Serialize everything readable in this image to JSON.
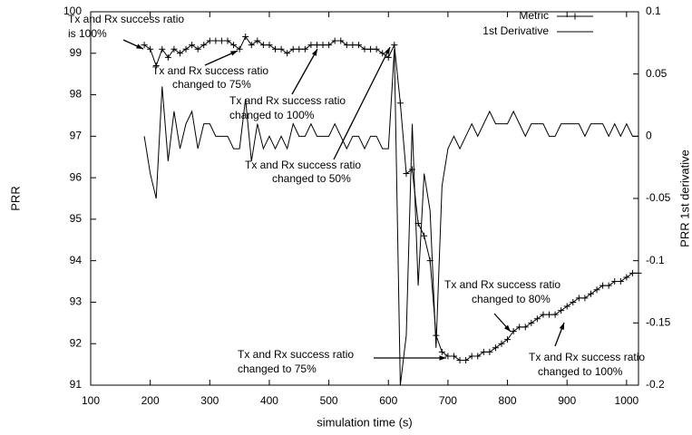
{
  "chart_data": {
    "type": "line",
    "x_label": "simulation time (s)",
    "y_label": "PRR",
    "y2_label": "PRR 1st derivative",
    "x": [
      190,
      200,
      210,
      220,
      230,
      240,
      250,
      260,
      270,
      280,
      290,
      300,
      310,
      320,
      330,
      340,
      350,
      360,
      370,
      380,
      390,
      400,
      410,
      420,
      430,
      440,
      450,
      460,
      470,
      480,
      490,
      500,
      510,
      520,
      530,
      540,
      550,
      560,
      570,
      580,
      590,
      600,
      610,
      620,
      630,
      640,
      650,
      660,
      670,
      680,
      690,
      700,
      710,
      720,
      730,
      740,
      750,
      760,
      770,
      780,
      790,
      800,
      810,
      820,
      830,
      840,
      850,
      860,
      870,
      880,
      890,
      900,
      910,
      920,
      930,
      940,
      950,
      960,
      970,
      980,
      990,
      1000,
      1010,
      1020
    ],
    "series": [
      {
        "name": "Metric",
        "color": "#000000",
        "marker": "plus",
        "values": [
          99.2,
          99.1,
          98.7,
          99.1,
          98.9,
          99.1,
          99.0,
          99.1,
          99.2,
          99.1,
          99.2,
          99.3,
          99.3,
          99.3,
          99.3,
          99.2,
          99.1,
          99.4,
          99.2,
          99.3,
          99.2,
          99.2,
          99.1,
          99.1,
          99.0,
          99.1,
          99.1,
          99.1,
          99.2,
          99.2,
          99.2,
          99.2,
          99.3,
          99.3,
          99.2,
          99.2,
          99.2,
          99.1,
          99.1,
          99.1,
          99.0,
          98.9,
          99.2,
          97.8,
          96.1,
          96.2,
          94.9,
          94.6,
          94.0,
          92.2,
          91.8,
          91.7,
          91.7,
          91.6,
          91.6,
          91.7,
          91.7,
          91.8,
          91.8,
          91.9,
          92.0,
          92.1,
          92.3,
          92.4,
          92.4,
          92.5,
          92.6,
          92.7,
          92.7,
          92.7,
          92.8,
          92.9,
          93.0,
          93.1,
          93.1,
          93.2,
          93.3,
          93.4,
          93.4,
          93.5,
          93.5,
          93.6,
          93.7,
          93.7
        ]
      },
      {
        "name": "1st Derivative",
        "color": "#000000",
        "axis": "y2",
        "values": [
          0,
          -0.03,
          -0.05,
          0.04,
          -0.02,
          0.02,
          -0.01,
          0.01,
          0.02,
          -0.01,
          0.01,
          0.01,
          0,
          0,
          0,
          -0.01,
          -0.01,
          0.03,
          -0.02,
          0.01,
          -0.01,
          0,
          -0.01,
          0,
          -0.01,
          0.01,
          0,
          0,
          0.01,
          0,
          0,
          0,
          0.01,
          0,
          -0.01,
          0,
          0,
          -0.01,
          0,
          0,
          -0.01,
          -0.01,
          0.07,
          -0.2,
          -0.16,
          0.01,
          -0.12,
          -0.03,
          -0.06,
          -0.17,
          -0.04,
          -0.01,
          0,
          -0.01,
          0,
          0.01,
          0,
          0.01,
          0.02,
          0.01,
          0.01,
          0.01,
          0.02,
          0.01,
          0,
          0.01,
          0.01,
          0.01,
          0,
          0,
          0.01,
          0.01,
          0.01,
          0.01,
          0,
          0.01,
          0.01,
          0.01,
          0,
          0.01,
          0,
          0.01,
          0,
          0
        ]
      }
    ],
    "xlim": [
      100,
      1020
    ],
    "xticks": [
      100,
      200,
      300,
      400,
      500,
      600,
      700,
      800,
      900,
      1000
    ],
    "ylim": [
      91,
      100
    ],
    "yticks": [
      91,
      92,
      93,
      94,
      95,
      96,
      97,
      98,
      99,
      100
    ],
    "y2lim": [
      -0.2,
      0.1
    ],
    "y2ticks": [
      -0.2,
      -0.15,
      -0.1,
      -0.05,
      0,
      0.05,
      0.1
    ],
    "legend": "top-right",
    "grid": false,
    "annotations": [
      [
        "Tx and Rx success ratio",
        "is 100%"
      ],
      [
        "Tx and Rx success ratio",
        "changed to 75%"
      ],
      [
        "Tx and Rx success ratio",
        "changed to 100%"
      ],
      [
        "Tx and Rx success ratio",
        "changed to 50%"
      ],
      [
        "Tx and Rx success ratio",
        "changed to 75%"
      ],
      [
        "Tx and Rx success ratio",
        "changed to 80%"
      ],
      [
        "Tx and Rx success ratio",
        "changed to 100%"
      ]
    ]
  }
}
